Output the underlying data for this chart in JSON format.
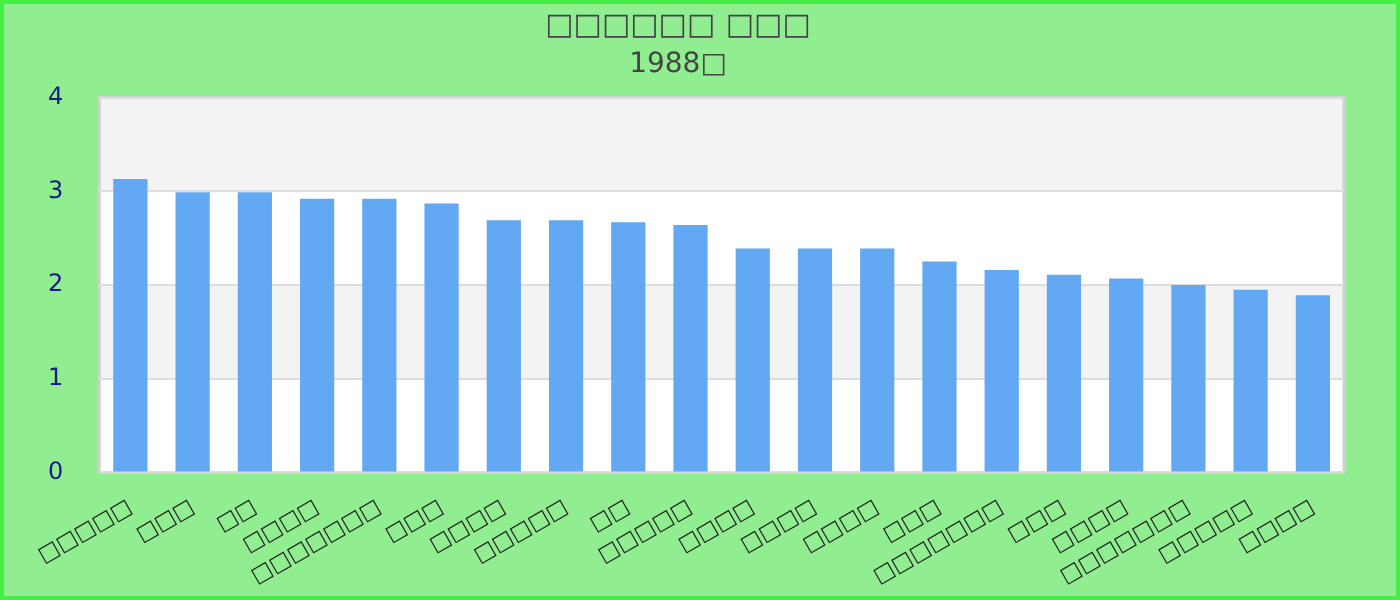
{
  "chart_data": {
    "type": "bar",
    "title": "□□□□□□ □□□",
    "subtitle": "1988□",
    "categories": [
      "□□□□□",
      "□□□",
      "□□",
      "□□□□",
      "□□□□□□□",
      "□□□",
      "□□□□",
      "□□□□□",
      "□□",
      "□□□□□",
      "□□□□",
      "□□□□",
      "□□□□",
      "□□□",
      "□□□□□□□",
      "□□□",
      "□□□□",
      "□□□□□□□",
      "□□□□□",
      "□□□□"
    ],
    "values": [
      3.13,
      2.99,
      2.99,
      2.92,
      2.92,
      2.87,
      2.69,
      2.69,
      2.67,
      2.64,
      2.39,
      2.39,
      2.39,
      2.25,
      2.16,
      2.11,
      2.07,
      2.0,
      1.95,
      1.89
    ],
    "color": "#63a8f3",
    "ylim": [
      0,
      4
    ],
    "yticks": [
      0,
      1,
      2,
      3,
      4
    ],
    "grid": "y",
    "legend": false
  }
}
